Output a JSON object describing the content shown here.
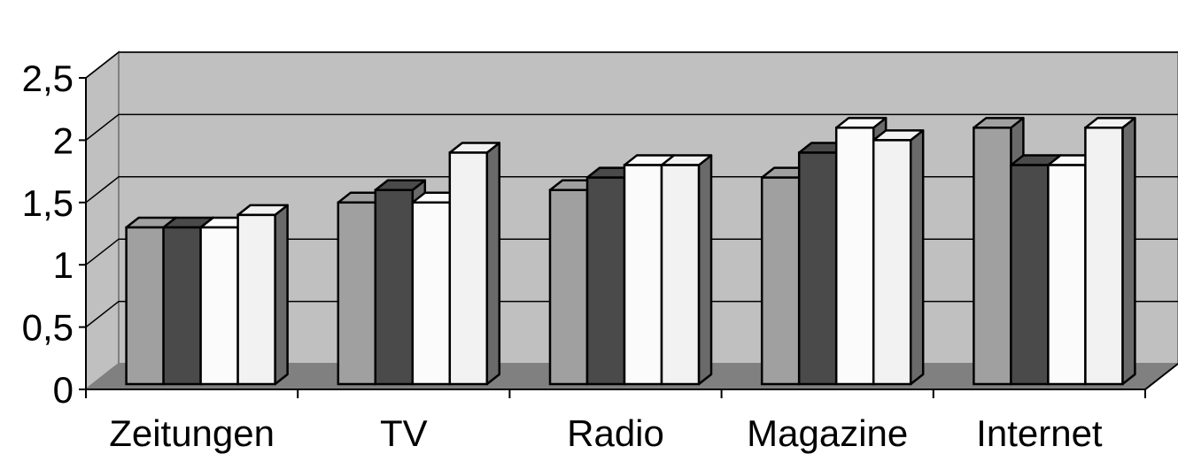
{
  "chart_data": {
    "type": "bar",
    "title": "",
    "xlabel": "",
    "ylabel": "",
    "categories": [
      "Zeitungen",
      "TV",
      "Radio",
      "Magazine",
      "Internet"
    ],
    "series": [
      {
        "values": [
          1.3,
          1.5,
          1.6,
          1.7,
          2.1
        ],
        "color": "#a0a0a0"
      },
      {
        "values": [
          1.3,
          1.6,
          1.7,
          1.9,
          1.8
        ],
        "color": "#4a4a4a"
      },
      {
        "values": [
          1.3,
          1.5,
          1.8,
          2.1,
          1.8
        ],
        "color": "#fbfbfb"
      },
      {
        "values": [
          1.4,
          1.9,
          1.8,
          2.0,
          2.1
        ],
        "color": "#f2f2f2"
      }
    ],
    "ylim": [
      0,
      2.5
    ],
    "yticks": [
      {
        "value": 0,
        "label": "0"
      },
      {
        "value": 0.5,
        "label": "0,5"
      },
      {
        "value": 1,
        "label": "1"
      },
      {
        "value": 1.5,
        "label": "1,5"
      },
      {
        "value": 2,
        "label": "2"
      },
      {
        "value": 2.5,
        "label": "2,5"
      }
    ],
    "grid": true,
    "legend": "none",
    "three_d": true,
    "colors": {
      "wall": "#c0c0c0",
      "floor": "#808080",
      "side_wall": "#c0c0c0",
      "axis": "#000000",
      "gridline": "#000000"
    }
  }
}
